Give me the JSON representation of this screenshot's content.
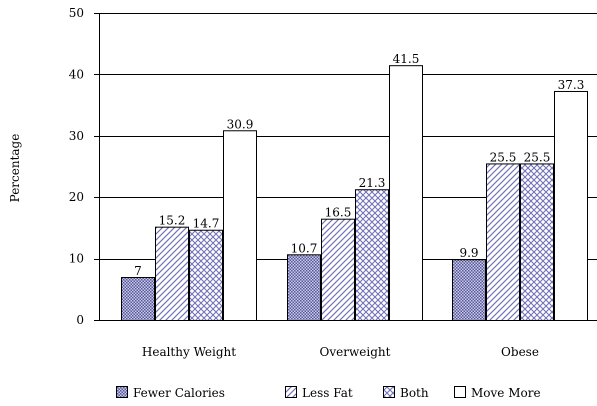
{
  "chart_data": {
    "type": "bar",
    "categories": [
      "Healthy Weight",
      "Overweight",
      "Obese"
    ],
    "series": [
      {
        "name": "Fewer Calories",
        "values": [
          7,
          10.7,
          9.9
        ],
        "pattern": "dots",
        "color": "#9999cc"
      },
      {
        "name": "Less Fat",
        "values": [
          15.2,
          16.5,
          25.5
        ],
        "pattern": "diagonal",
        "color": "#7777bb"
      },
      {
        "name": "Both",
        "values": [
          14.7,
          21.3,
          25.5
        ],
        "pattern": "crosshatch",
        "color": "#7777bb"
      },
      {
        "name": "Move More",
        "values": [
          30.9,
          41.5,
          37.3
        ],
        "pattern": "none",
        "color": "#ffffff"
      }
    ],
    "data_labels": [
      [
        "7",
        "10.7",
        "9.9"
      ],
      [
        "15.2",
        "16.5",
        "25.5"
      ],
      [
        "14.7",
        "21.3",
        "25.5"
      ],
      [
        "30.9",
        "41.5",
        "37.3"
      ]
    ],
    "ylabel": "Percentage",
    "xlabel": "",
    "title": "",
    "ylim": [
      0,
      50
    ],
    "yticks": [
      0,
      10,
      20,
      30,
      40,
      50
    ],
    "grid": true,
    "legend_position": "bottom"
  }
}
